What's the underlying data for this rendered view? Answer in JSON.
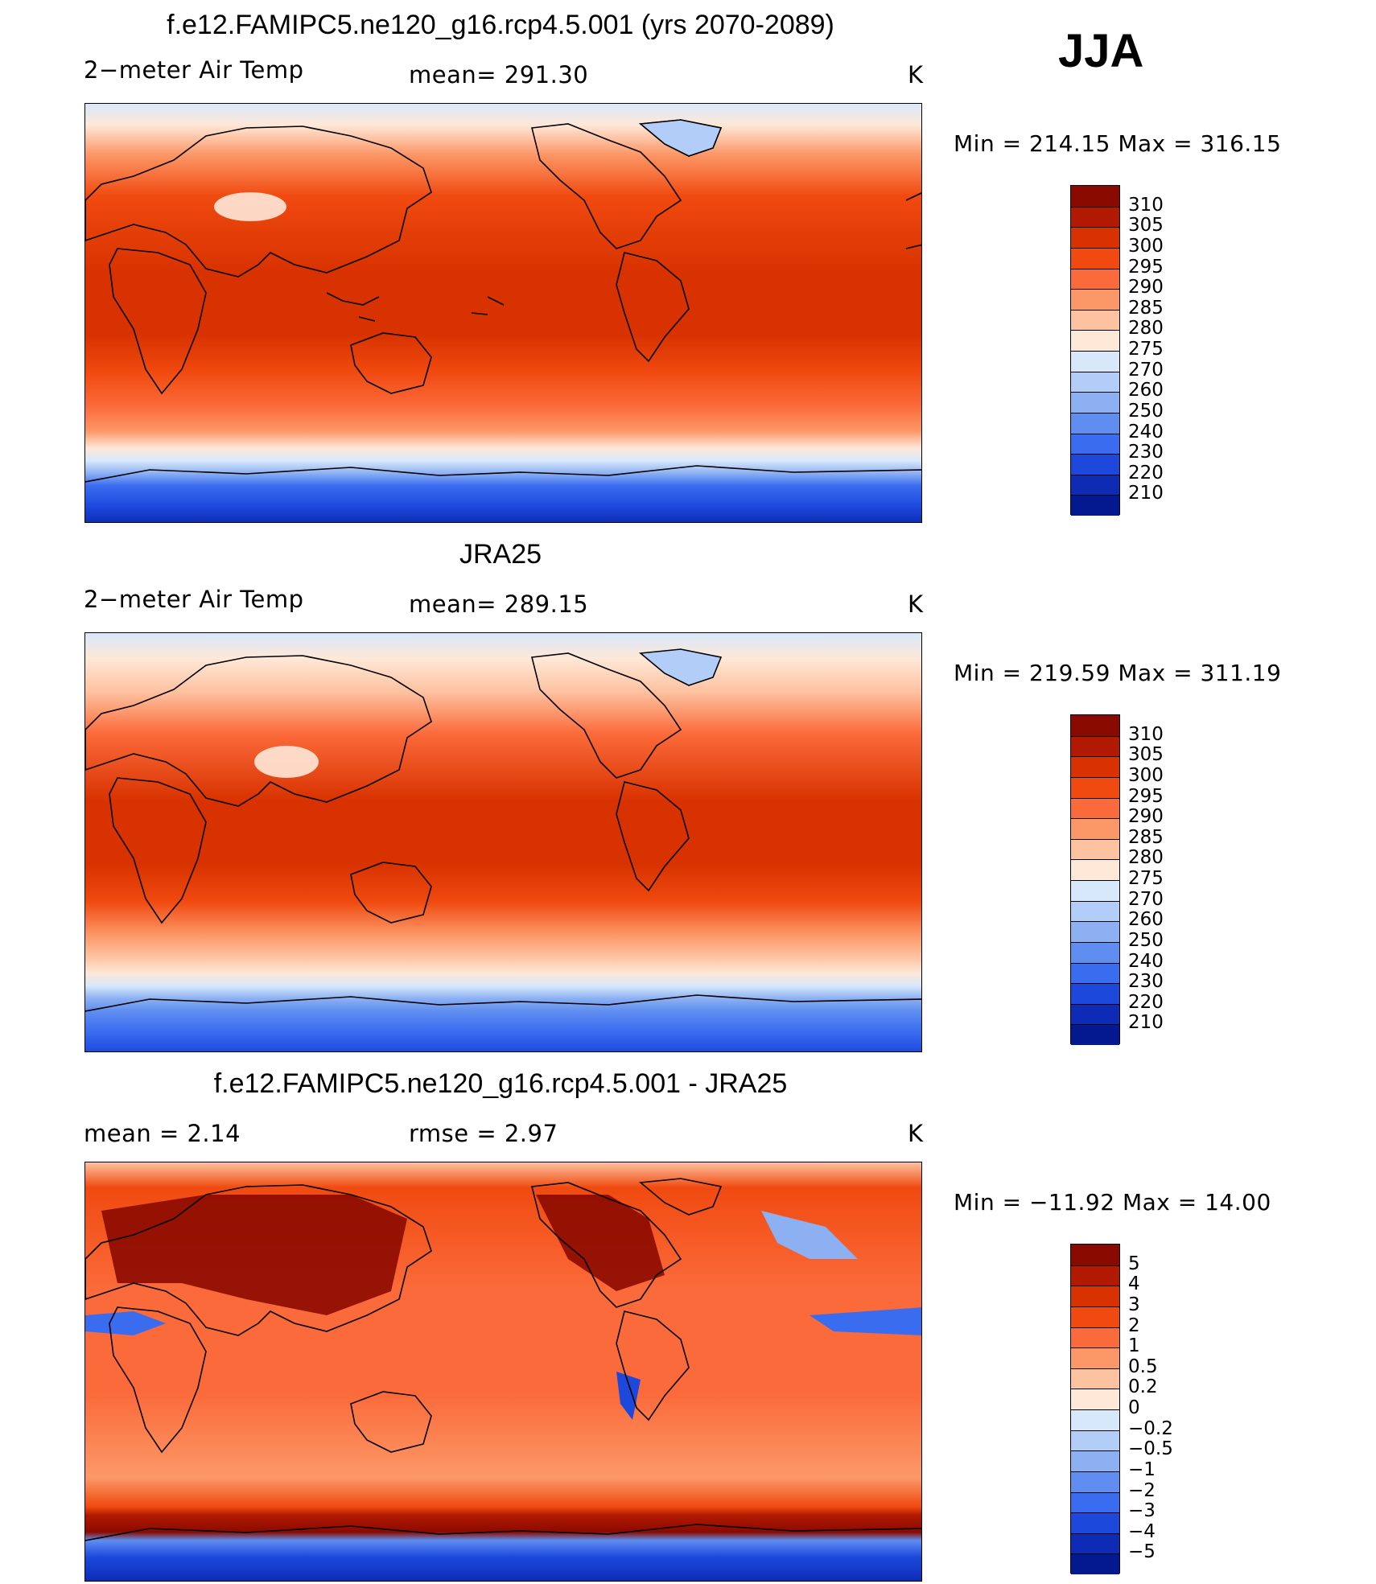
{
  "season": "JJA",
  "panels": [
    {
      "title": "f.e12.FAMIPC5.ne120_g16.rcp4.5.001 (yrs 2070-2089)",
      "left_label": "2−meter Air Temp",
      "center_label": "mean=  291.30",
      "units": "K",
      "minmax": "Min  =  214.15  Max  =  316.15",
      "colorbar": {
        "labels": [
          "310",
          "305",
          "300",
          "295",
          "290",
          "285",
          "280",
          "275",
          "270",
          "260",
          "250",
          "240",
          "230",
          "220",
          "210"
        ],
        "colors": [
          "#8b0a00",
          "#b11a00",
          "#d83200",
          "#f04a10",
          "#fb6a3a",
          "#fc9868",
          "#fdc2a0",
          "#fee8d8",
          "#d7e8fb",
          "#b2cdf7",
          "#8cb0f2",
          "#5f8ef0",
          "#3a6cf0",
          "#1c48dc",
          "#0d2bb4",
          "#041890"
        ]
      }
    },
    {
      "title": "JRA25",
      "left_label": "2−meter Air Temp",
      "center_label": "mean=  289.15",
      "units": "K",
      "minmax": "Min  =  219.59  Max  =  311.19",
      "colorbar": {
        "labels": [
          "310",
          "305",
          "300",
          "295",
          "290",
          "285",
          "280",
          "275",
          "270",
          "260",
          "250",
          "240",
          "230",
          "220",
          "210"
        ],
        "colors": [
          "#8b0a00",
          "#b11a00",
          "#d83200",
          "#f04a10",
          "#fb6a3a",
          "#fc9868",
          "#fdc2a0",
          "#fee8d8",
          "#d7e8fb",
          "#b2cdf7",
          "#8cb0f2",
          "#5f8ef0",
          "#3a6cf0",
          "#1c48dc",
          "#0d2bb4",
          "#041890"
        ]
      }
    },
    {
      "title": "f.e12.FAMIPC5.ne120_g16.rcp4.5.001 - JRA25",
      "left_label": "mean  =     2.14",
      "center_label": "rmse  =     2.97",
      "units": "K",
      "minmax": "Min  =  −11.92  Max  =     14.00",
      "colorbar": {
        "labels": [
          "5",
          "4",
          "3",
          "2",
          "1",
          "0.5",
          "0.2",
          "0",
          "−0.2",
          "−0.5",
          "−1",
          "−2",
          "−3",
          "−4",
          "−5"
        ],
        "colors": [
          "#8b0a00",
          "#b11a00",
          "#d83200",
          "#f04a10",
          "#fb6a3a",
          "#fc9868",
          "#fdc2a0",
          "#fee8d8",
          "#d7e8fb",
          "#b2cdf7",
          "#8cb0f2",
          "#5f8ef0",
          "#3a6cf0",
          "#1c48dc",
          "#0d2bb4",
          "#041890"
        ]
      }
    }
  ]
}
